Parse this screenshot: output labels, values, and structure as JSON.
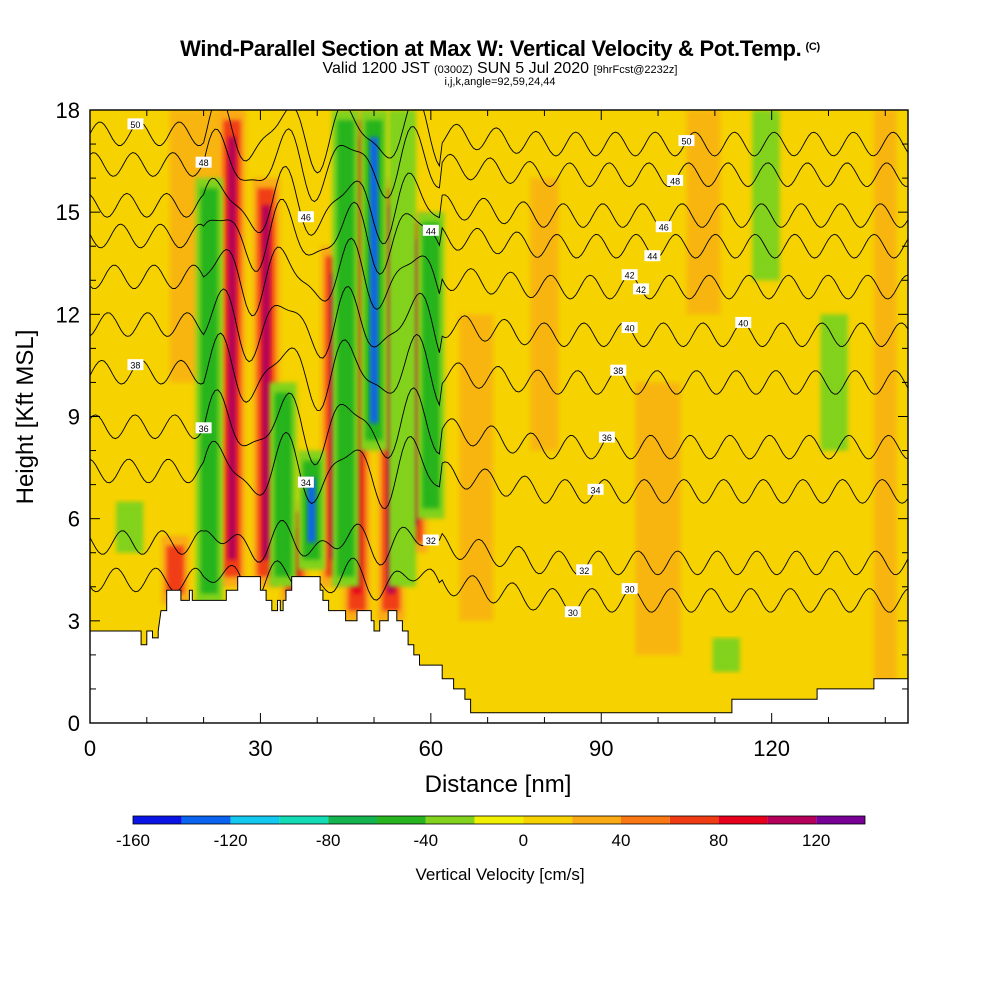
{
  "header": {
    "title": "Wind-Parallel Section at Max W: Vertical Velocity & Pot.Temp.",
    "copyright": "(C)",
    "valid_prefix": "Valid 1200 JST",
    "valid_utc": "(0300Z)",
    "valid_date": "SUN 5 Jul 2020",
    "forecast": "[9hrFcst@2232z]",
    "params": "i,j,k,angle=92,59,24,44"
  },
  "chart_data": {
    "type": "heatmap",
    "xlabel": "Distance [nm]",
    "ylabel": "Height [Kft MSL]",
    "xlim": [
      0,
      144
    ],
    "ylim": [
      0,
      18
    ],
    "xticks": [
      0,
      30,
      60,
      90,
      120
    ],
    "yticks": [
      0,
      3,
      6,
      9,
      12,
      15,
      18
    ],
    "colorbar": {
      "title": "Vertical Velocity [cm/s]",
      "tick_labels": [
        "-160",
        "-120",
        "-80",
        "-40",
        "0",
        "40",
        "80",
        "120"
      ],
      "tick_values": [
        -160,
        -120,
        -80,
        -40,
        0,
        40,
        80,
        120
      ],
      "bins": [
        -160,
        -140,
        -120,
        -100,
        -80,
        -60,
        -40,
        -20,
        0,
        20,
        40,
        60,
        80,
        100,
        120,
        140
      ],
      "colors": [
        "#0a14e6",
        "#0a64f0",
        "#14c8f0",
        "#14dcb4",
        "#14b450",
        "#28b41e",
        "#82d21e",
        "#f0f000",
        "#f5d200",
        "#faaa14",
        "#fa7814",
        "#f03c14",
        "#e6001e",
        "#b4005a",
        "#780096"
      ]
    },
    "updrafts": [
      {
        "x": 15,
        "z_range": [
          3.5,
          5.5
        ],
        "w": 70
      },
      {
        "x": 25,
        "z_range": [
          4,
          18
        ],
        "w": 110
      },
      {
        "x": 31,
        "z_range": [
          4,
          16
        ],
        "w": 100
      },
      {
        "x": 36,
        "z_range": [
          3.5,
          6.5
        ],
        "w": 90
      },
      {
        "x": 43,
        "z_range": [
          4,
          14
        ],
        "w": 115
      },
      {
        "x": 47,
        "z_range": [
          3,
          18
        ],
        "w": 95
      },
      {
        "x": 53,
        "z_range": [
          3,
          16
        ],
        "w": 110
      },
      {
        "x": 57,
        "z_range": [
          5,
          15
        ],
        "w": 105
      }
    ],
    "downdrafts": [
      {
        "x": 21,
        "z_range": [
          3.5,
          16
        ],
        "w": -60
      },
      {
        "x": 34,
        "z_range": [
          4,
          10
        ],
        "w": -50
      },
      {
        "x": 39,
        "z_range": [
          4.5,
          8
        ],
        "w": -140
      },
      {
        "x": 45,
        "z_range": [
          4,
          18
        ],
        "w": -60
      },
      {
        "x": 50,
        "z_range": [
          8,
          18
        ],
        "w": -130
      },
      {
        "x": 55,
        "z_range": [
          4,
          18
        ],
        "w": -40
      },
      {
        "x": 60,
        "z_range": [
          6,
          15
        ],
        "w": -60
      },
      {
        "x": 119,
        "z_range": [
          13,
          18
        ],
        "w": -30
      },
      {
        "x": 131,
        "z_range": [
          8,
          12
        ],
        "w": -30
      },
      {
        "x": 112,
        "z_range": [
          1.5,
          2.5
        ],
        "w": -40
      },
      {
        "x": 7,
        "z_range": [
          5,
          6.5
        ],
        "w": -30
      }
    ],
    "theta_contours": [
      {
        "label": "50",
        "height": 17.3
      },
      {
        "label": "48",
        "height": 16.4
      },
      {
        "label": "46",
        "height": 15.2
      },
      {
        "label": "44",
        "height": 14.3
      },
      {
        "label": "42",
        "height": 13.1
      },
      {
        "label": "40",
        "height": 11.7
      },
      {
        "label": "38",
        "height": 10.3
      },
      {
        "label": "36",
        "height": 8.7
      },
      {
        "label": "34",
        "height": 7.4
      },
      {
        "label": "32",
        "height": 5.3
      },
      {
        "label": "30",
        "height": 4.2
      }
    ],
    "terrain": [
      [
        0,
        2.7
      ],
      [
        9,
        2.7
      ],
      [
        9,
        2.3
      ],
      [
        10,
        2.3
      ],
      [
        10,
        2.7
      ],
      [
        11,
        2.7
      ],
      [
        11,
        2.5
      ],
      [
        12,
        2.5
      ],
      [
        12,
        2.7
      ],
      [
        12,
        2.7
      ],
      [
        12.5,
        3.3
      ],
      [
        13.5,
        3.3
      ],
      [
        13.5,
        3.9
      ],
      [
        16,
        3.9
      ],
      [
        16,
        3.6
      ],
      [
        17.5,
        3.6
      ],
      [
        17.5,
        3.9
      ],
      [
        18,
        3.9
      ],
      [
        18,
        3.6
      ],
      [
        24,
        3.6
      ],
      [
        24,
        3.9
      ],
      [
        26,
        3.9
      ],
      [
        26,
        4.3
      ],
      [
        30,
        4.3
      ],
      [
        30,
        3.9
      ],
      [
        31,
        3.9
      ],
      [
        31,
        3.6
      ],
      [
        32,
        3.6
      ],
      [
        32,
        3.3
      ],
      [
        33,
        3.3
      ],
      [
        33,
        3.6
      ],
      [
        33.5,
        3.6
      ],
      [
        33.5,
        3.3
      ],
      [
        34,
        3.3
      ],
      [
        34,
        3.6
      ],
      [
        34.5,
        3.6
      ],
      [
        34.5,
        3.9
      ],
      [
        35.5,
        3.9
      ],
      [
        35.5,
        4.3
      ],
      [
        40.5,
        4.3
      ],
      [
        40.5,
        3.9
      ],
      [
        41,
        3.9
      ],
      [
        41,
        3.6
      ],
      [
        42,
        3.6
      ],
      [
        42,
        3.3
      ],
      [
        45,
        3.3
      ],
      [
        45,
        3.0
      ],
      [
        47,
        3.0
      ],
      [
        47,
        3.3
      ],
      [
        49.5,
        3.3
      ],
      [
        49.5,
        3.0
      ],
      [
        50,
        3.0
      ],
      [
        50,
        2.7
      ],
      [
        51,
        2.7
      ],
      [
        51,
        3.0
      ],
      [
        52.5,
        3.0
      ],
      [
        52.5,
        3.3
      ],
      [
        54,
        3.3
      ],
      [
        54,
        3.0
      ],
      [
        55,
        3.0
      ],
      [
        55,
        2.7
      ],
      [
        56,
        2.7
      ],
      [
        56,
        2.3
      ],
      [
        57,
        2.3
      ],
      [
        57,
        2.0
      ],
      [
        58,
        2.0
      ],
      [
        58,
        1.7
      ],
      [
        62,
        1.7
      ],
      [
        62,
        1.3
      ],
      [
        64,
        1.3
      ],
      [
        64,
        1.0
      ],
      [
        66,
        1.0
      ],
      [
        66,
        0.7
      ],
      [
        67,
        0.7
      ],
      [
        67,
        0.3
      ],
      [
        113,
        0.3
      ],
      [
        113,
        0.7
      ],
      [
        128,
        0.7
      ],
      [
        128,
        1.0
      ],
      [
        138,
        1.0
      ],
      [
        138,
        1.3
      ],
      [
        144,
        1.3
      ]
    ]
  }
}
